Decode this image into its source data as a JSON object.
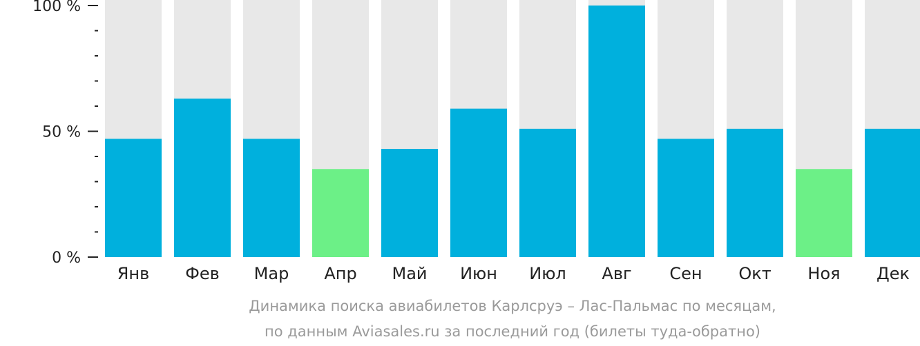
{
  "chart_data": {
    "type": "bar",
    "categories": [
      "Янв",
      "Фев",
      "Мар",
      "Апр",
      "Май",
      "Июн",
      "Июл",
      "Авг",
      "Сен",
      "Окт",
      "Ноя",
      "Дек"
    ],
    "values": [
      47,
      63,
      47,
      35,
      43,
      59,
      51,
      100,
      47,
      51,
      35,
      51
    ],
    "max_value": 100,
    "ylim": [
      0,
      100
    ],
    "yticks": [
      {
        "value": 100,
        "label": "100 %"
      },
      {
        "value": 50,
        "label": "50 %"
      },
      {
        "value": 0,
        "label": "0 %"
      }
    ],
    "minor_tick_step": 10,
    "caption_lines": [
      "Динамика поиска авиабилетов Карлсруэ – Лас-Пальмас по месяцам,",
      "по данным Aviasales.ru за последний год (билеты туда-обратно)"
    ],
    "colors": {
      "bar": "#00b0dd",
      "bar_low": "#6cf087",
      "background_bar": "#e8e8e8",
      "axis": "#222222"
    },
    "low_categories": [
      "Апр",
      "Ноя"
    ],
    "grid": false,
    "legend": "none"
  }
}
